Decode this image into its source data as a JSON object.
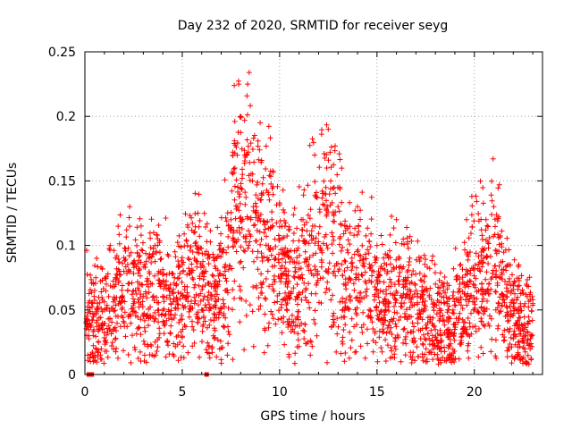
{
  "chart_data": {
    "type": "scatter",
    "title": "Day 232 of 2020, SRMTID for receiver seyg",
    "xlabel": "GPS time / hours",
    "ylabel": "SRMTID / TECUs",
    "xlim": [
      0,
      23.5
    ],
    "ylim": [
      0,
      0.25
    ],
    "xticks": [
      0,
      5,
      10,
      15,
      20
    ],
    "xtick_labels": [
      "0",
      "5",
      "10",
      "15",
      "20"
    ],
    "yticks": [
      0,
      0.05,
      0.1,
      0.15,
      0.2,
      0.25
    ],
    "ytick_labels": [
      "0",
      "0.05",
      "0.1",
      "0.15",
      "0.2",
      "0.25"
    ],
    "grid": true,
    "marker": "plus",
    "color": "#ff0000",
    "series": [
      {
        "name": "SRMTID",
        "points_note": "Dense scatter: values mostly 0.03-0.11 TECU; peak ~0.22 near hour 8; secondary spikes ~0.19 near hours 9 and 12.5",
        "zero_markers": [
          0.2,
          0.35,
          6.25
        ],
        "samples": [
          [
            0.1,
            0.045
          ],
          [
            0.2,
            0.03
          ],
          [
            0.4,
            0.055
          ],
          [
            0.5,
            0.065
          ],
          [
            0.6,
            0.09
          ],
          [
            0.7,
            0.025
          ],
          [
            0.8,
            0.015
          ],
          [
            0.9,
            0.035
          ],
          [
            1.0,
            0.05
          ],
          [
            1.1,
            0.07
          ],
          [
            1.3,
            0.1
          ],
          [
            1.5,
            0.06
          ],
          [
            1.7,
            0.045
          ],
          [
            2.0,
            0.08
          ],
          [
            2.3,
            0.13
          ],
          [
            2.5,
            0.055
          ],
          [
            2.8,
            0.07
          ],
          [
            3.0,
            0.045
          ],
          [
            3.3,
            0.09
          ],
          [
            3.6,
            0.1
          ],
          [
            4.0,
            0.06
          ],
          [
            4.3,
            0.05
          ],
          [
            4.6,
            0.075
          ],
          [
            5.0,
            0.085
          ],
          [
            5.3,
            0.09
          ],
          [
            5.6,
            0.11
          ],
          [
            5.8,
            0.125
          ],
          [
            6.0,
            0.05
          ],
          [
            6.3,
            0.06
          ],
          [
            6.6,
            0.03
          ],
          [
            6.9,
            0.1
          ],
          [
            7.2,
            0.08
          ],
          [
            7.5,
            0.12
          ],
          [
            7.7,
            0.16
          ],
          [
            7.9,
            0.225
          ],
          [
            8.0,
            0.2
          ],
          [
            8.2,
            0.17
          ],
          [
            8.4,
            0.1
          ],
          [
            8.6,
            0.15
          ],
          [
            8.8,
            0.13
          ],
          [
            9.0,
            0.195
          ],
          [
            9.2,
            0.11
          ],
          [
            9.4,
            0.08
          ],
          [
            9.6,
            0.12
          ],
          [
            9.8,
            0.09
          ],
          [
            10.0,
            0.105
          ],
          [
            10.3,
            0.07
          ],
          [
            10.6,
            0.09
          ],
          [
            10.9,
            0.06
          ],
          [
            11.2,
            0.12
          ],
          [
            11.5,
            0.085
          ],
          [
            11.8,
            0.17
          ],
          [
            12.0,
            0.1
          ],
          [
            12.3,
            0.14
          ],
          [
            12.5,
            0.19
          ],
          [
            12.8,
            0.08
          ],
          [
            13.0,
            0.13
          ],
          [
            13.3,
            0.07
          ],
          [
            13.6,
            0.06
          ],
          [
            14.0,
            0.13
          ],
          [
            14.3,
            0.09
          ],
          [
            14.6,
            0.05
          ],
          [
            15.0,
            0.1
          ],
          [
            15.3,
            0.04
          ],
          [
            15.6,
            0.055
          ],
          [
            16.0,
            0.12
          ],
          [
            16.3,
            0.06
          ],
          [
            16.6,
            0.045
          ],
          [
            17.0,
            0.065
          ],
          [
            17.3,
            0.05
          ],
          [
            17.6,
            0.04
          ],
          [
            18.0,
            0.07
          ],
          [
            18.3,
            0.025
          ],
          [
            18.6,
            0.055
          ],
          [
            19.0,
            0.035
          ],
          [
            19.3,
            0.06
          ],
          [
            19.6,
            0.12
          ],
          [
            20.0,
            0.05
          ],
          [
            20.3,
            0.08
          ],
          [
            20.6,
            0.12
          ],
          [
            21.0,
            0.13
          ],
          [
            21.3,
            0.06
          ],
          [
            21.6,
            0.045
          ],
          [
            22.0,
            0.07
          ],
          [
            22.3,
            0.05
          ],
          [
            22.6,
            0.03
          ],
          [
            22.8,
            0.008
          ],
          [
            23.0,
            0.055
          ]
        ]
      }
    ]
  }
}
